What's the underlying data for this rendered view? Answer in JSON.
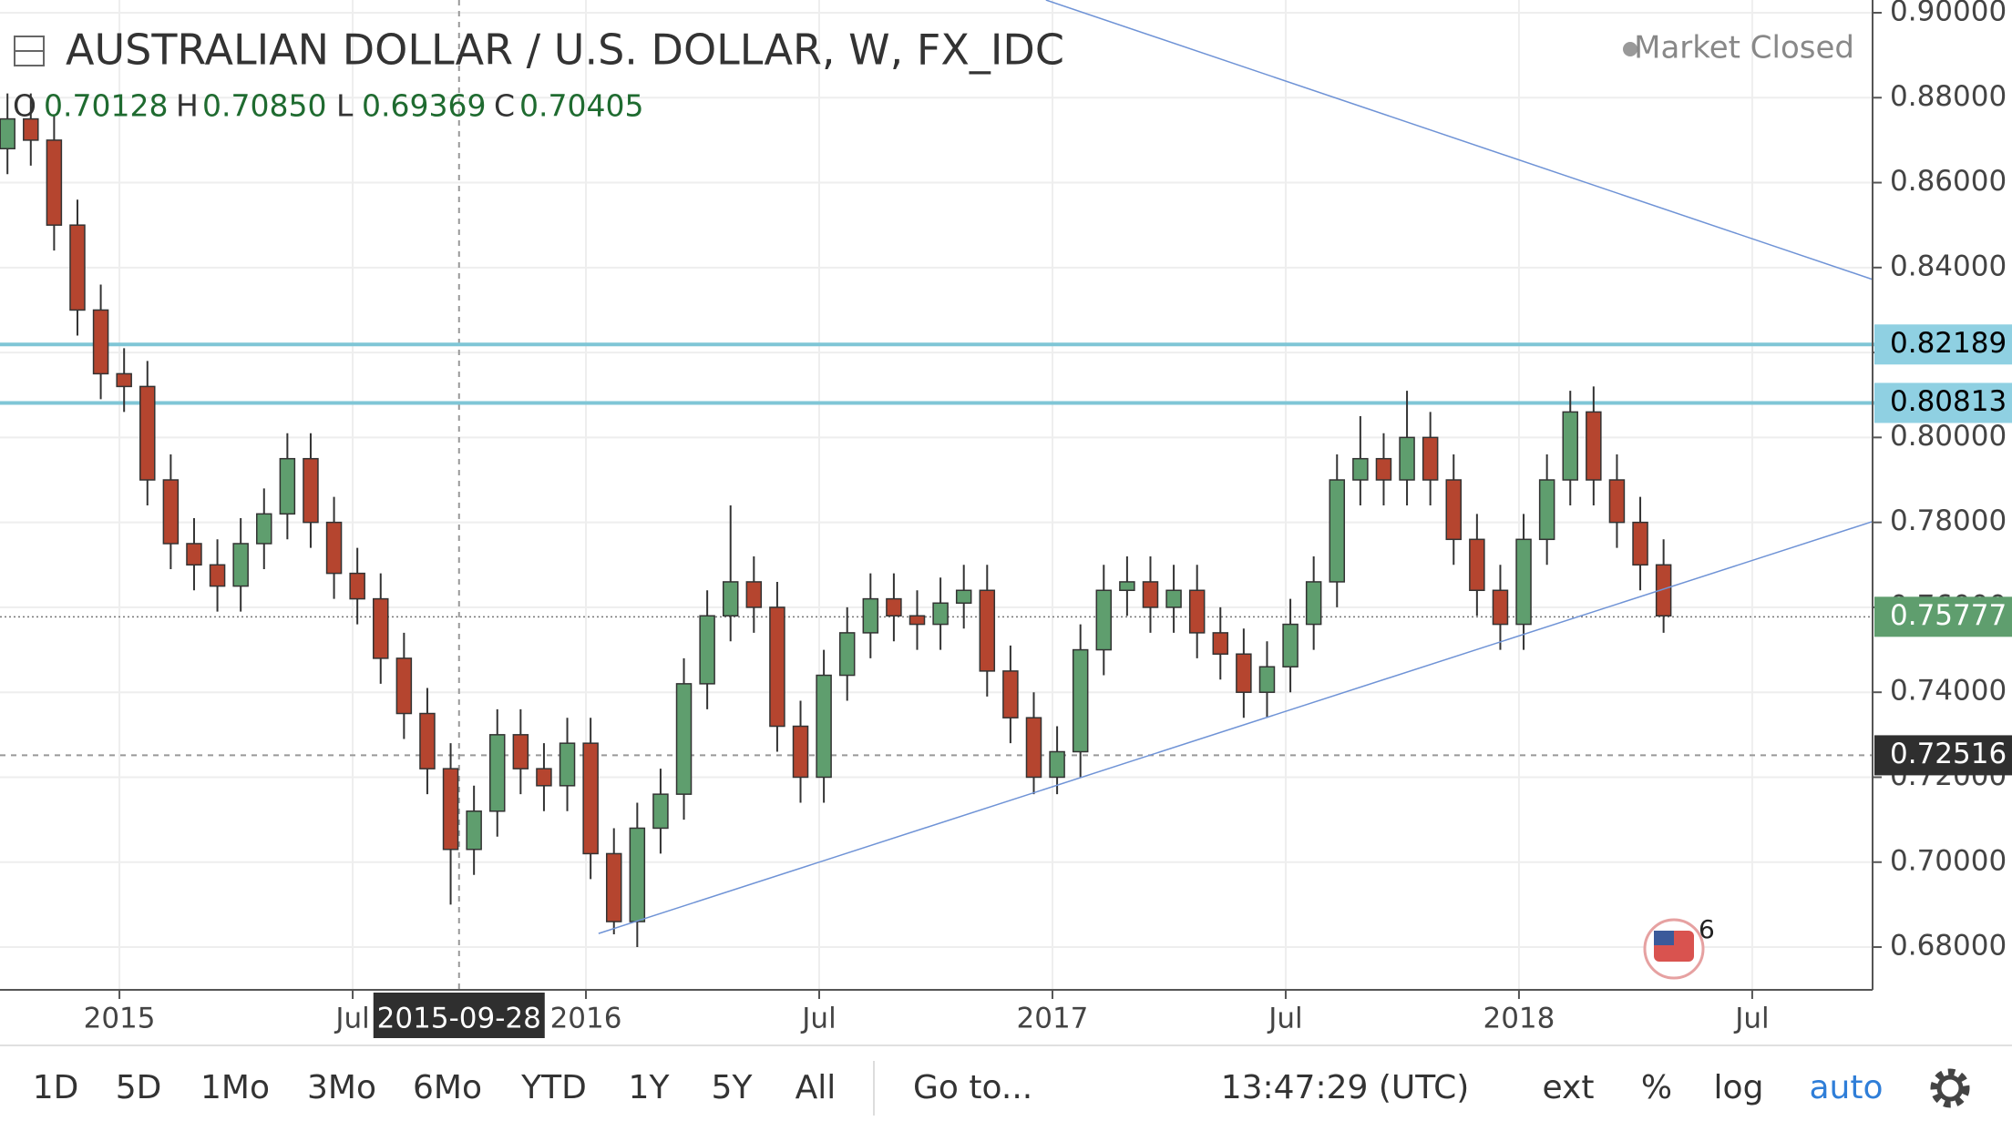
{
  "chart_data": {
    "type": "candlestick",
    "title": "AUSTRALIAN DOLLAR / U.S. DOLLAR, W, FX_IDC",
    "status": "Market Closed",
    "ohlc_legend": [
      {
        "label": "O",
        "value": "0.70128"
      },
      {
        "label": "H",
        "value": "0.70850"
      },
      {
        "label": "L",
        "value": "0.69369"
      },
      {
        "label": "C",
        "value": "0.70405"
      }
    ],
    "x": [
      2014.76,
      2014.81,
      2014.86,
      2014.91,
      2014.96,
      2015.01,
      2015.06,
      2015.11,
      2015.16,
      2015.21,
      2015.26,
      2015.31,
      2015.36,
      2015.41,
      2015.46,
      2015.51,
      2015.56,
      2015.61,
      2015.66,
      2015.71,
      2015.76,
      2015.81,
      2015.86,
      2015.91,
      2015.96,
      2016.01,
      2016.06,
      2016.11,
      2016.16,
      2016.21,
      2016.26,
      2016.31,
      2016.36,
      2016.41,
      2016.46,
      2016.51,
      2016.56,
      2016.61,
      2016.66,
      2016.71,
      2016.76,
      2016.81,
      2016.86,
      2016.91,
      2016.96,
      2017.01,
      2017.06,
      2017.11,
      2017.16,
      2017.21,
      2017.26,
      2017.31,
      2017.36,
      2017.41,
      2017.46,
      2017.51,
      2017.56,
      2017.61,
      2017.66,
      2017.71,
      2017.76,
      2017.81,
      2017.86,
      2017.91,
      2017.96,
      2018.01,
      2018.06,
      2018.11,
      2018.16,
      2018.21,
      2018.26,
      2018.31
    ],
    "open": [
      0.868,
      0.875,
      0.87,
      0.85,
      0.83,
      0.815,
      0.812,
      0.79,
      0.775,
      0.77,
      0.765,
      0.775,
      0.782,
      0.795,
      0.78,
      0.768,
      0.762,
      0.748,
      0.735,
      0.722,
      0.703,
      0.712,
      0.73,
      0.722,
      0.718,
      0.728,
      0.702,
      0.686,
      0.708,
      0.716,
      0.742,
      0.758,
      0.766,
      0.76,
      0.732,
      0.72,
      0.744,
      0.754,
      0.762,
      0.758,
      0.756,
      0.761,
      0.764,
      0.745,
      0.734,
      0.72,
      0.726,
      0.75,
      0.764,
      0.766,
      0.76,
      0.764,
      0.754,
      0.749,
      0.74,
      0.746,
      0.756,
      0.766,
      0.79,
      0.795,
      0.79,
      0.8,
      0.79,
      0.776,
      0.764,
      0.756,
      0.776,
      0.79,
      0.806,
      0.79,
      0.78,
      0.77
    ],
    "high": [
      0.881,
      0.881,
      0.876,
      0.856,
      0.836,
      0.821,
      0.818,
      0.796,
      0.781,
      0.776,
      0.781,
      0.788,
      0.801,
      0.801,
      0.786,
      0.774,
      0.768,
      0.754,
      0.741,
      0.728,
      0.718,
      0.736,
      0.736,
      0.728,
      0.734,
      0.734,
      0.708,
      0.714,
      0.722,
      0.748,
      0.764,
      0.784,
      0.772,
      0.766,
      0.738,
      0.75,
      0.76,
      0.768,
      0.768,
      0.764,
      0.767,
      0.77,
      0.77,
      0.751,
      0.74,
      0.732,
      0.756,
      0.77,
      0.772,
      0.772,
      0.77,
      0.77,
      0.76,
      0.755,
      0.752,
      0.762,
      0.772,
      0.796,
      0.805,
      0.801,
      0.811,
      0.806,
      0.796,
      0.782,
      0.77,
      0.782,
      0.796,
      0.811,
      0.812,
      0.796,
      0.786,
      0.776
    ],
    "low": [
      0.862,
      0.864,
      0.844,
      0.824,
      0.809,
      0.806,
      0.784,
      0.769,
      0.764,
      0.759,
      0.759,
      0.769,
      0.776,
      0.774,
      0.762,
      0.756,
      0.742,
      0.729,
      0.716,
      0.69,
      0.697,
      0.706,
      0.716,
      0.712,
      0.712,
      0.696,
      0.683,
      0.68,
      0.702,
      0.71,
      0.736,
      0.752,
      0.754,
      0.726,
      0.714,
      0.714,
      0.738,
      0.748,
      0.752,
      0.75,
      0.75,
      0.755,
      0.739,
      0.728,
      0.716,
      0.716,
      0.72,
      0.744,
      0.758,
      0.754,
      0.754,
      0.748,
      0.743,
      0.734,
      0.734,
      0.74,
      0.75,
      0.76,
      0.784,
      0.784,
      0.784,
      0.784,
      0.77,
      0.758,
      0.75,
      0.75,
      0.77,
      0.784,
      0.784,
      0.774,
      0.764,
      0.754
    ],
    "close": [
      0.875,
      0.87,
      0.85,
      0.83,
      0.815,
      0.812,
      0.79,
      0.775,
      0.77,
      0.765,
      0.775,
      0.782,
      0.795,
      0.78,
      0.768,
      0.762,
      0.748,
      0.735,
      0.722,
      0.703,
      0.712,
      0.73,
      0.722,
      0.718,
      0.728,
      0.702,
      0.686,
      0.708,
      0.716,
      0.742,
      0.758,
      0.766,
      0.76,
      0.732,
      0.72,
      0.744,
      0.754,
      0.762,
      0.758,
      0.756,
      0.761,
      0.764,
      0.745,
      0.734,
      0.72,
      0.726,
      0.75,
      0.764,
      0.766,
      0.76,
      0.764,
      0.754,
      0.749,
      0.74,
      0.746,
      0.756,
      0.766,
      0.79,
      0.795,
      0.79,
      0.8,
      0.79,
      0.776,
      0.764,
      0.756,
      0.776,
      0.79,
      0.806,
      0.79,
      0.78,
      0.77,
      0.758
    ],
    "up_color": "#5f9e6e",
    "down_color": "#b5452f",
    "xlim": [
      2014.744,
      2018.758
    ],
    "ylim": [
      0.66993,
      0.903
    ],
    "xticks": [
      2015,
      {
        "value": 2015.5,
        "label": "Jul"
      },
      2016,
      {
        "value": 2016.5,
        "label": "Jul"
      },
      2017,
      {
        "value": 2017.5,
        "label": "Jul"
      },
      2018,
      {
        "value": 2018.5,
        "label": "Jul"
      }
    ],
    "yticks": [
      {
        "value": 0.68,
        "label": "0.68000"
      },
      {
        "value": 0.7,
        "label": "0.70000"
      },
      {
        "value": 0.72,
        "label": "0.72000"
      },
      {
        "value": 0.74,
        "label": "0.74000"
      },
      {
        "value": 0.76,
        "label": "0.76000"
      },
      {
        "value": 0.78,
        "label": "0.78000"
      },
      {
        "value": 0.8,
        "label": "0.80000"
      },
      {
        "value": 0.82,
        "label": "0.82000"
      },
      {
        "value": 0.84,
        "label": "0.84000"
      },
      {
        "value": 0.86,
        "label": "0.86000"
      },
      {
        "value": 0.88,
        "label": "0.88000"
      },
      {
        "value": 0.9,
        "label": "0.90000"
      }
    ],
    "grid": true,
    "levels": [
      0.82189,
      0.80813
    ],
    "level_color": "#7fc6d6",
    "last_price": 0.75777,
    "trendlines": [
      {
        "x": [
          2016.027,
          2018.758
        ],
        "y": [
          0.6832,
          0.7802
        ]
      },
      {
        "x": [
          2016.986,
          2018.758
        ],
        "y": [
          0.903,
          0.8372
        ]
      }
    ],
    "trend_color": "#6f93d6",
    "crosshair": {
      "x": 2015.728,
      "x_label": "2015-09-28",
      "y": 0.72516
    },
    "events_badge": "6"
  },
  "toolbar": {
    "ranges": [
      "1D",
      "5D",
      "1Mo",
      "3Mo",
      "6Mo",
      "YTD",
      "1Y",
      "5Y",
      "All"
    ],
    "goto": "Go to...",
    "clock": "13:47:29 (UTC)",
    "options": [
      "ext",
      "%",
      "log",
      "auto"
    ]
  }
}
